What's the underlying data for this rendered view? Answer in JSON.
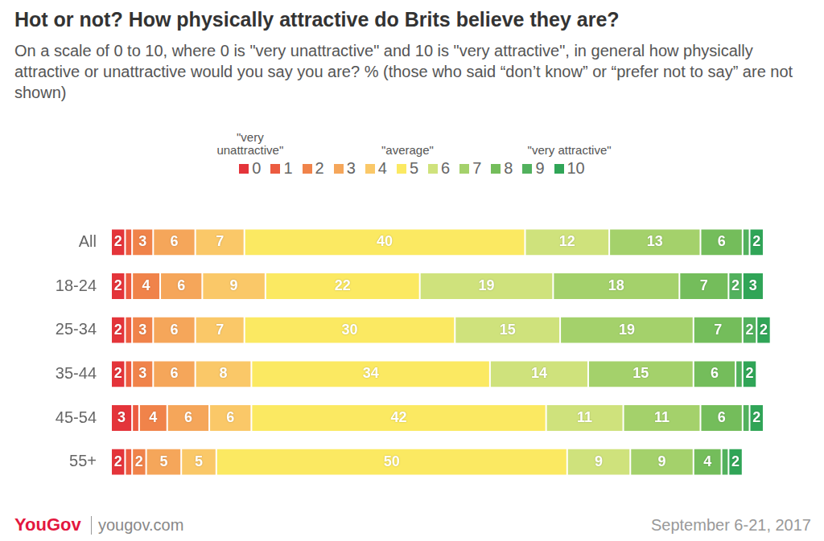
{
  "chart_data": {
    "type": "bar",
    "orientation": "horizontal",
    "stacked": true,
    "title": "Hot or not? How physically attractive do Brits believe they are?",
    "subtitle": "On a scale of 0 to 10, where 0 is \"very unattractive\" and 10 is \"very attractive\", in general how physically attractive or unattractive would you say you are? % (those who said “don’t know” or “prefer not to say” are not shown)",
    "categories": [
      "All",
      "18-24",
      "25-34",
      "35-44",
      "45-54",
      "55+"
    ],
    "series": [
      {
        "name": "0",
        "color": "#e4343a",
        "values": [
          2,
          2,
          2,
          2,
          3,
          2
        ],
        "value_labels": [
          "2",
          "2",
          "2",
          "2",
          "3",
          "2"
        ]
      },
      {
        "name": "1",
        "color": "#ec5b40",
        "values": [
          1,
          1,
          1,
          1,
          1,
          1
        ],
        "value_labels": [
          null,
          null,
          null,
          null,
          null,
          null
        ]
      },
      {
        "name": "2",
        "color": "#f0834a",
        "values": [
          3,
          4,
          3,
          3,
          4,
          2
        ],
        "value_labels": [
          "3",
          "4",
          "3",
          "3",
          "4",
          "2"
        ]
      },
      {
        "name": "3",
        "color": "#f5a65a",
        "values": [
          6,
          6,
          6,
          6,
          6,
          5
        ],
        "value_labels": [
          "6",
          "6",
          "6",
          "6",
          "6",
          "5"
        ]
      },
      {
        "name": "4",
        "color": "#fac868",
        "values": [
          7,
          9,
          7,
          8,
          6,
          5
        ],
        "value_labels": [
          "7",
          "9",
          "7",
          "8",
          "6",
          "5"
        ]
      },
      {
        "name": "5",
        "color": "#fbe962",
        "values": [
          40,
          22,
          30,
          34,
          42,
          50
        ],
        "value_labels": [
          "40",
          "22",
          "30",
          "34",
          "42",
          "50"
        ]
      },
      {
        "name": "6",
        "color": "#cfe27c",
        "values": [
          12,
          19,
          15,
          14,
          11,
          9
        ],
        "value_labels": [
          "12",
          "19",
          "15",
          "14",
          "11",
          "9"
        ]
      },
      {
        "name": "7",
        "color": "#a4d16b",
        "values": [
          13,
          18,
          19,
          15,
          11,
          9
        ],
        "value_labels": [
          "13",
          "18",
          "19",
          "15",
          "11",
          "9"
        ]
      },
      {
        "name": "8",
        "color": "#74bd5b",
        "values": [
          6,
          7,
          7,
          6,
          6,
          4
        ],
        "value_labels": [
          "6",
          "7",
          "7",
          "6",
          "6",
          "4"
        ]
      },
      {
        "name": "9",
        "color": "#52b15d",
        "values": [
          1,
          2,
          2,
          1,
          1,
          1
        ],
        "value_labels": [
          null,
          "2",
          "2",
          null,
          null,
          null
        ]
      },
      {
        "name": "10",
        "color": "#30a557",
        "values": [
          2,
          3,
          2,
          2,
          2,
          2
        ],
        "value_labels": [
          "2",
          "3",
          "2",
          "2",
          "2",
          "2"
        ]
      }
    ],
    "xlim": [
      0,
      100
    ],
    "tick_labels": "y",
    "grid": false,
    "legend": "top",
    "data_labels": true,
    "annotations": [
      {
        "text": "\"very unattractive\"",
        "series": "0"
      },
      {
        "text": "\"average\"",
        "series": "5"
      },
      {
        "text": "\"very attractive\"",
        "series": "10"
      }
    ],
    "source": "YouGov",
    "source_url": "yougov.com",
    "date": "September 6-21, 2017"
  }
}
